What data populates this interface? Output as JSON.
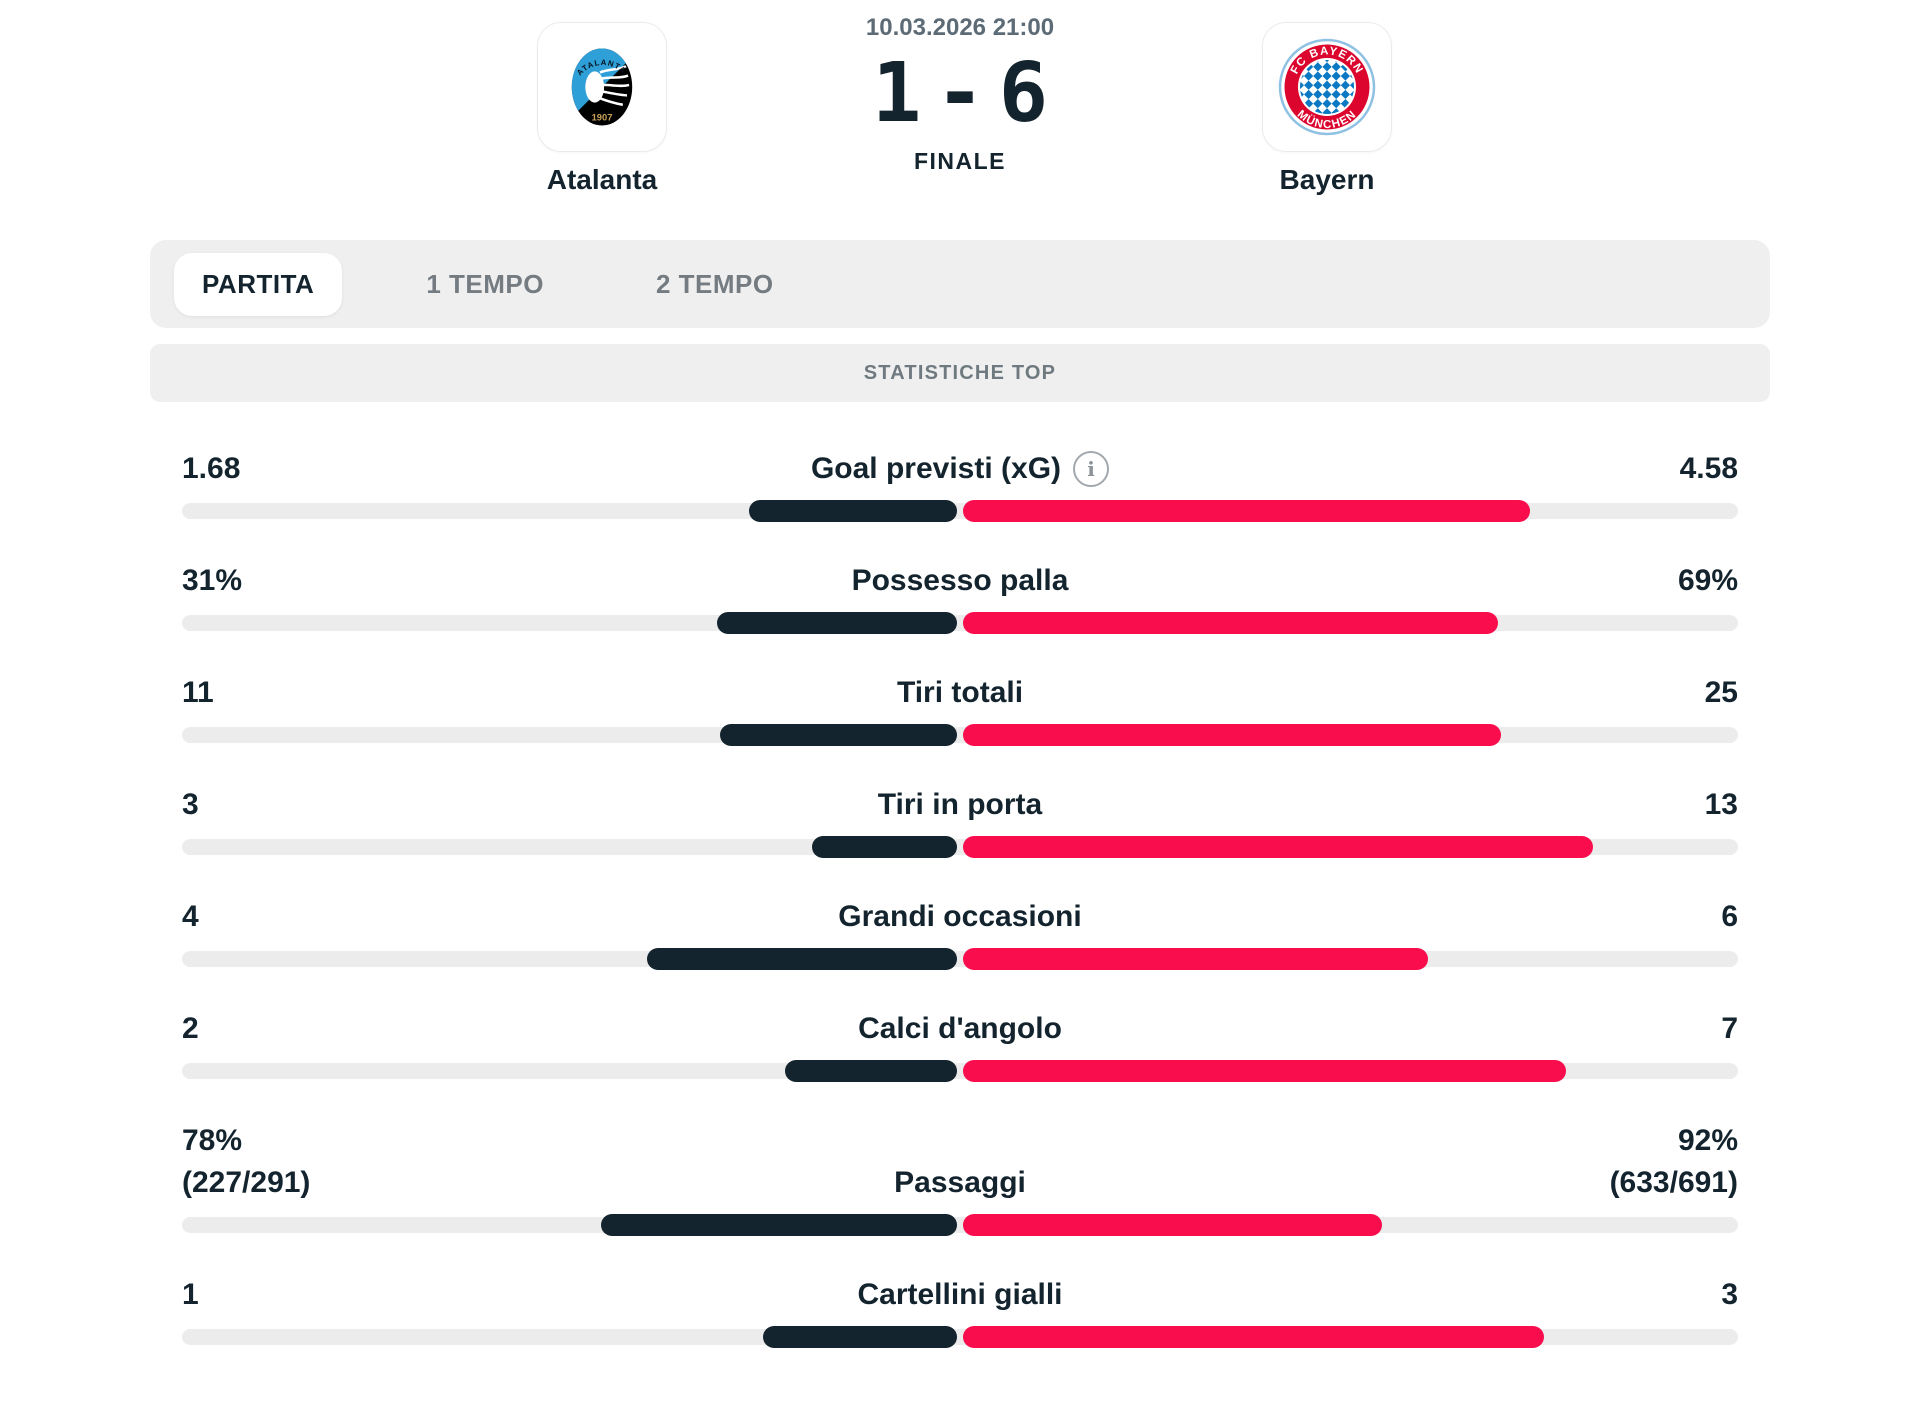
{
  "header": {
    "datetime": "10.03.2026 21:00",
    "score_home": "1",
    "score_separator": "-",
    "score_away": "6",
    "status": "FINALE",
    "home_team": {
      "name": "Atalanta",
      "crest_arc_text": "ATALANTA",
      "crest_year": "1907",
      "crest_blue": "#2f9fd8",
      "crest_black": "#000000"
    },
    "away_team": {
      "name": "Bayern",
      "crest_ring_top": "FC BAYERN",
      "crest_ring_bottom": "MÜNCHEN",
      "crest_red": "#dc052d",
      "crest_blue": "#0a78c2"
    }
  },
  "tabs": {
    "items": [
      {
        "label": "PARTITA",
        "active": true
      },
      {
        "label": "1 TEMPO",
        "active": false
      },
      {
        "label": "2 TEMPO",
        "active": false
      }
    ]
  },
  "section_title": "STATISTICHE TOP",
  "colors": {
    "home_bar": "#14242e",
    "away_bar": "#fa0d4d",
    "track": "#ececec",
    "panel_gray": "#efefef",
    "muted_text": "#6f7a80"
  },
  "chart_data": {
    "type": "bar",
    "orientation": "horizontal-diverging-from-center",
    "title": "STATISTICHE TOP",
    "teams": [
      "Atalanta",
      "Bayern"
    ],
    "legend_position": "none",
    "stats": [
      {
        "label": "Goal previsti (xG)",
        "home": "1.68",
        "away": "4.58",
        "home_value": 1.68,
        "away_value": 4.58,
        "info": true
      },
      {
        "label": "Possesso palla",
        "home": "31%",
        "away": "69%",
        "home_value": 31,
        "away_value": 69
      },
      {
        "label": "Tiri totali",
        "home": "11",
        "away": "25",
        "home_value": 11,
        "away_value": 25
      },
      {
        "label": "Tiri in porta",
        "home": "3",
        "away": "13",
        "home_value": 3,
        "away_value": 13
      },
      {
        "label": "Grandi occasioni",
        "home": "4",
        "away": "6",
        "home_value": 4,
        "away_value": 6
      },
      {
        "label": "Calci d'angolo",
        "home": "2",
        "away": "7",
        "home_value": 2,
        "away_value": 7
      },
      {
        "label": "Passaggi",
        "home": "78%",
        "home_detail": "(227/291)",
        "away": "92%",
        "away_detail": "(633/691)",
        "home_value": 78,
        "away_value": 92
      },
      {
        "label": "Cartellini gialli",
        "home": "1",
        "away": "3",
        "home_value": 1,
        "away_value": 3
      }
    ]
  }
}
